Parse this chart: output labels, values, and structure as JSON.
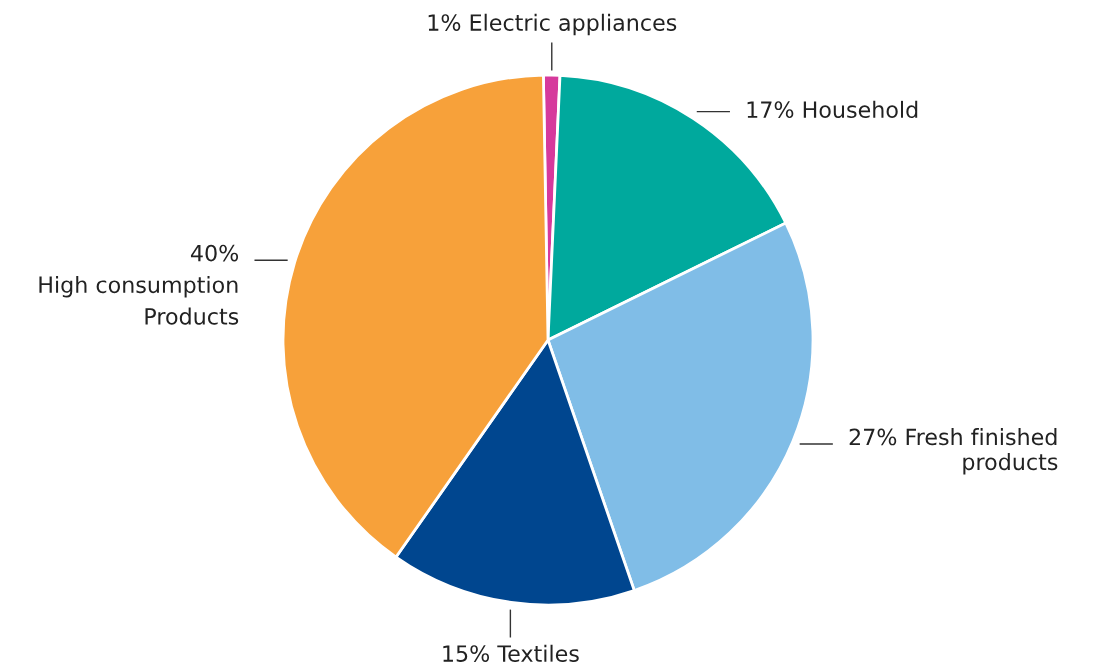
{
  "chart_data": {
    "type": "pie",
    "categories": [
      "Electric appliances",
      "Household",
      "Fresh finished\nproducts",
      "Textiles",
      "High consumption\nProducts"
    ],
    "values": [
      1,
      17,
      27,
      15,
      40
    ],
    "value_labels": [
      "1%",
      "17%",
      "27%",
      "15%",
      "40%"
    ],
    "colors": [
      "#d6399c",
      "#00a99d",
      "#80bde7",
      "#00468f",
      "#f7a13a"
    ],
    "legend": false
  }
}
